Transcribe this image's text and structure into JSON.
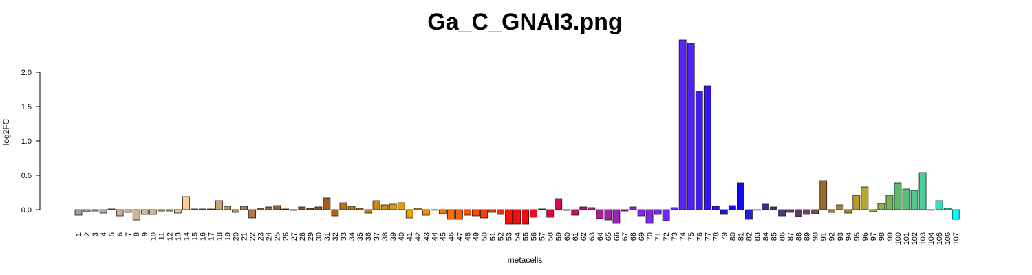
{
  "chart_data": {
    "type": "bar",
    "title": "Ga_C_GNAI3.png",
    "xlabel": "metacells",
    "ylabel": "log2FC",
    "ylim": [
      -0.25,
      2.5
    ],
    "yticks": [
      "0.0",
      "0.5",
      "1.0",
      "1.5",
      "2.0"
    ],
    "grid": false,
    "legend": "none",
    "categories": [
      "1",
      "2",
      "3",
      "4",
      "5",
      "6",
      "7",
      "8",
      "9",
      "10",
      "11",
      "12",
      "13",
      "14",
      "15",
      "16",
      "17",
      "18",
      "19",
      "20",
      "21",
      "22",
      "23",
      "24",
      "25",
      "26",
      "27",
      "28",
      "29",
      "30",
      "31",
      "32",
      "33",
      "34",
      "35",
      "36",
      "37",
      "38",
      "39",
      "40",
      "41",
      "42",
      "43",
      "44",
      "45",
      "46",
      "47",
      "48",
      "49",
      "50",
      "51",
      "52",
      "53",
      "54",
      "55",
      "56",
      "57",
      "58",
      "59",
      "60",
      "61",
      "62",
      "63",
      "64",
      "65",
      "66",
      "67",
      "68",
      "69",
      "70",
      "71",
      "72",
      "73",
      "74",
      "75",
      "76",
      "77",
      "78",
      "79",
      "80",
      "81",
      "82",
      "83",
      "84",
      "85",
      "86",
      "87",
      "88",
      "89",
      "90",
      "91",
      "92",
      "93",
      "94",
      "95",
      "96",
      "97",
      "98",
      "99",
      "100",
      "101",
      "102",
      "103",
      "104",
      "105",
      "106",
      "107"
    ],
    "values": [
      -0.08,
      -0.03,
      -0.02,
      -0.05,
      0.01,
      -0.09,
      -0.04,
      -0.15,
      -0.07,
      -0.07,
      -0.02,
      -0.02,
      -0.05,
      0.19,
      0.01,
      0.01,
      0.01,
      0.13,
      0.05,
      -0.04,
      0.05,
      -0.12,
      0.02,
      0.04,
      0.06,
      0.01,
      -0.01,
      0.04,
      0.02,
      0.04,
      0.17,
      -0.09,
      0.1,
      0.05,
      0.02,
      -0.05,
      0.13,
      0.07,
      0.08,
      0.1,
      -0.12,
      0.02,
      -0.08,
      0.0,
      -0.06,
      -0.14,
      -0.14,
      -0.08,
      -0.09,
      -0.12,
      -0.04,
      -0.07,
      -0.21,
      -0.21,
      -0.21,
      -0.11,
      0.01,
      -0.11,
      0.16,
      -0.01,
      -0.08,
      0.04,
      0.03,
      -0.13,
      -0.15,
      -0.2,
      -0.02,
      0.04,
      -0.09,
      -0.2,
      -0.07,
      -0.16,
      0.03,
      2.47,
      2.42,
      1.72,
      1.8,
      0.05,
      -0.07,
      0.06,
      0.39,
      -0.14,
      0.0,
      0.08,
      0.04,
      -0.09,
      -0.04,
      -0.1,
      -0.07,
      -0.06,
      0.42,
      -0.04,
      0.07,
      -0.05,
      0.21,
      0.33,
      -0.03,
      0.09,
      0.21,
      0.39,
      0.3,
      0.28,
      0.54,
      0.0,
      0.13,
      0.02,
      -0.14
    ],
    "colors": [
      "#a0a0a0",
      "#aaa8a4",
      "#b4ada4",
      "#bcb0a0",
      "#c4b39c",
      "#c8b097",
      "#ccb393",
      "#d2b48f",
      "#d6b891",
      "#dab891",
      "#dcbe93",
      "#dfc397",
      "#e6c996",
      "#f8cf8f",
      "#e2b884",
      "#d8aa7e",
      "#d4a474",
      "#d0a070",
      "#c89060",
      "#c08a5c",
      "#b88050",
      "#b07848",
      "#aa7042",
      "#a4683c",
      "#9c6236",
      "#965c30",
      "#90582c",
      "#8c5428",
      "#8a5226",
      "#8c5224",
      "#a45e18",
      "#b06414",
      "#bc6e12",
      "#c2740e",
      "#c87a0c",
      "#ce800a",
      "#d48808",
      "#da9006",
      "#e09806",
      "#e69e04",
      "#f0a000",
      "#f69a00",
      "#fa9000",
      "#fc8400",
      "#fd7800",
      "#fe6c00",
      "#ff6000",
      "#ff5400",
      "#ff4800",
      "#ff3c00",
      "#ff3000",
      "#ff2000",
      "#ff1000",
      "#ff0808",
      "#f50a14",
      "#ee0a20",
      "#e8082c",
      "#e00838",
      "#d80a48",
      "#d00c58",
      "#c81068",
      "#c01478",
      "#b81888",
      "#b01c98",
      "#a820a8",
      "#a022b8",
      "#9822c8",
      "#9024d8",
      "#8826e4",
      "#8028ee",
      "#7828f4",
      "#7028f8",
      "#6828fa",
      "#5a24fa",
      "#4c20fa",
      "#401cf8",
      "#3418f4",
      "#2c14f0",
      "#2410ee",
      "#1c0eec",
      "#140aee",
      "#2820c8",
      "#3424b0",
      "#3e2aa0",
      "#483092",
      "#523484",
      "#5a3878",
      "#62386c",
      "#6c4060",
      "#7a4c50",
      "#9c6a30",
      "#a47828",
      "#ac8424",
      "#b49022",
      "#b89c24",
      "#b8a82c",
      "#a8ac3c",
      "#90b04c",
      "#78b45c",
      "#60b86c",
      "#58c27c",
      "#50c88c",
      "#48d09c",
      "#40d8ac",
      "#38e0c0",
      "#28ecd8",
      "#00ffff"
    ]
  }
}
